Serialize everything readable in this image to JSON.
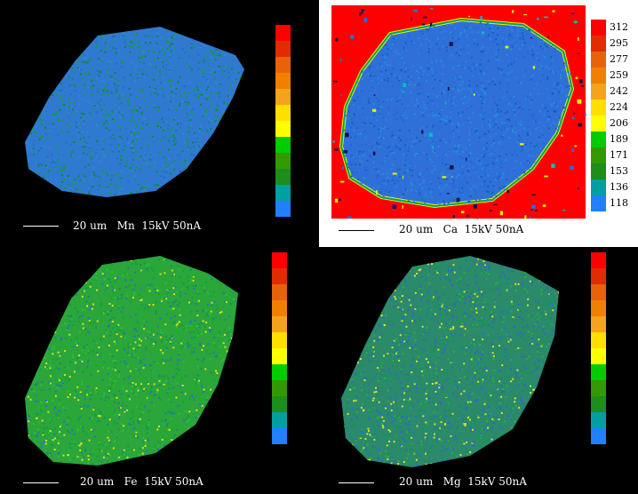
{
  "palette": [
    "#ff0000",
    "#e02c00",
    "#e8620a",
    "#f08000",
    "#f5a21c",
    "#ffdf00",
    "#ffff00",
    "#00cc00",
    "#339900",
    "#1b8e1b",
    "#00a0a0",
    "#2080ff"
  ],
  "panels": [
    {
      "element": "Mn",
      "caption": {
        "scale": "20 um",
        "element": "Mn",
        "condition": "15kV 50nA"
      },
      "scale_ticks": [
        "372",
        "357",
        "341",
        "325",
        "309",
        "293",
        "277",
        "261",
        "245",
        "229",
        "213",
        "197"
      ],
      "background_color": "#000000",
      "grain_colors": [
        "#1a9a3a",
        "#168048",
        "#1f6fc0",
        "#2c88d8",
        "#10a030",
        "#3a6fd0"
      ]
    },
    {
      "element": "Ca",
      "caption": {
        "scale": "20 um",
        "element": "Ca",
        "condition": "15kV 50nA"
      },
      "scale_ticks": [
        "312",
        "295",
        "277",
        "259",
        "242",
        "224",
        "206",
        "189",
        "171",
        "153",
        "136",
        "118"
      ],
      "background_color": "#ff0000",
      "grain_colors": [
        "#1f64d8",
        "#2f7de8",
        "#2090e0",
        "#1060c0",
        "#3c70d0"
      ]
    },
    {
      "element": "Fe",
      "caption": {
        "scale": "20 um",
        "element": "Fe",
        "condition": "15kV 50nA"
      },
      "scale_ticks": [
        "465",
        "456",
        "447",
        "437",
        "428",
        "418",
        "409",
        "400",
        "390",
        "381",
        "371",
        "362"
      ],
      "background_color": "#000000",
      "grain_colors": [
        "#20b020",
        "#30c030",
        "#e0e020",
        "#1a8a6a",
        "#2a70d0",
        "#0fa040"
      ]
    },
    {
      "element": "Mg",
      "caption": {
        "scale": "20 um",
        "element": "Mg",
        "condition": "15kV 50nA"
      },
      "scale_ticks": [
        "119",
        "116",
        "112",
        "108",
        "104",
        "100",
        "96",
        "92",
        "88",
        "84",
        "80",
        "76"
      ],
      "background_color": "#000000",
      "grain_colors": [
        "#10a040",
        "#2070d0",
        "#e0e030",
        "#30b030",
        "#1c8870",
        "#3a5fd0"
      ]
    }
  ]
}
